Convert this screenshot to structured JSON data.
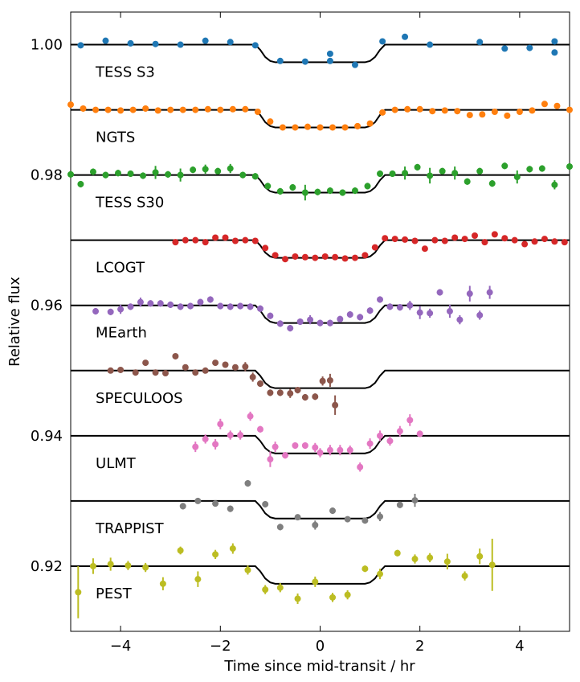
{
  "chart_data": {
    "type": "lightcurve",
    "xlabel": "Time since mid-transit / hr",
    "ylabel": "Relative flux",
    "xlim": [
      -5,
      5
    ],
    "ylim": [
      0.91,
      1.005
    ],
    "xticks": [
      {
        "value": -4,
        "label": "−4"
      },
      {
        "value": -2,
        "label": "−2"
      },
      0,
      2,
      4
    ],
    "yticks": [
      0.92,
      0.94,
      0.96,
      0.98,
      {
        "value": 1,
        "label": "1.00"
      }
    ],
    "model_x": [
      -5,
      -1.3,
      -1.2,
      -1.1,
      -1.0,
      -0.9,
      0.9,
      1.0,
      1.1,
      1.2,
      1.3,
      5
    ],
    "series": [
      {
        "name": "TESS S3",
        "color": "#1f77b4",
        "x": [
          -4.8,
          -4.3,
          -3.8,
          -3.3,
          -2.8,
          -2.3,
          -1.8,
          -1.3,
          -0.8,
          -0.3,
          0.2,
          0.2,
          0.7,
          1.25,
          1.7,
          2.2,
          3.2,
          3.7,
          4.2,
          4.7,
          4.7
        ],
        "values": [
          0.9999,
          1.0006,
          1.0002,
          1.0001,
          1.0,
          1.0006,
          1.0004,
          0.9999,
          0.9975,
          0.9974,
          0.9986,
          0.9975,
          0.9969,
          1.0005,
          1.0012,
          1.0,
          1.0004,
          0.9994,
          0.9995,
          1.0005,
          0.9988
        ],
        "errors": [
          0.0004,
          0.0004,
          0.0004,
          0.0004,
          0.0004,
          0.0004,
          0.0004,
          0.0004,
          0.0004,
          0.0004,
          0.0004,
          0.0004,
          0.0004,
          0.0004,
          0.0004,
          0.0004,
          0.0004,
          0.0004,
          0.0004,
          0.0004,
          0.0004
        ],
        "model": [
          1.0,
          1.0,
          0.9992,
          0.9981,
          0.9975,
          0.9973,
          0.9973,
          0.9975,
          0.9981,
          0.9992,
          1.0,
          1.0
        ]
      },
      {
        "name": "NGTS",
        "color": "#ff7f0e",
        "x": [
          -5,
          -4.75,
          -4.5,
          -4.25,
          -4,
          -3.75,
          -3.5,
          -3.25,
          -3,
          -2.75,
          -2.5,
          -2.25,
          -2,
          -1.75,
          -1.5,
          -1.25,
          -1,
          -0.75,
          -0.5,
          -0.25,
          0,
          0.25,
          0.5,
          0.75,
          1,
          1.25,
          1.5,
          1.75,
          2,
          2.25,
          2.5,
          2.75,
          3,
          3.25,
          3.5,
          3.75,
          4,
          4.25,
          4.5,
          4.75,
          5
        ],
        "values": [
          0.9908,
          0.9902,
          0.99,
          0.99,
          0.9899,
          0.99,
          0.9902,
          0.9899,
          0.99,
          0.99,
          0.99,
          0.9901,
          0.99,
          0.9901,
          0.9901,
          0.9897,
          0.9882,
          0.9873,
          0.9873,
          0.9874,
          0.9873,
          0.9873,
          0.9873,
          0.9875,
          0.9879,
          0.9896,
          0.99,
          0.9901,
          0.9901,
          0.9898,
          0.9899,
          0.9898,
          0.9892,
          0.9893,
          0.9897,
          0.9891,
          0.9897,
          0.9899,
          0.9909,
          0.9906,
          0.99
        ],
        "errors": [
          0.0002,
          0.0002,
          0.0002,
          0.0002,
          0.0002,
          0.0002,
          0.0002,
          0.0002,
          0.0002,
          0.0002,
          0.0002,
          0.0002,
          0.0002,
          0.0002,
          0.0002,
          0.0002,
          0.0002,
          0.0002,
          0.0002,
          0.0002,
          0.0002,
          0.0002,
          0.0002,
          0.0002,
          0.0002,
          0.0002,
          0.0002,
          0.0002,
          0.0002,
          0.0002,
          0.0002,
          0.0002,
          0.0002,
          0.0002,
          0.0002,
          0.0002,
          0.0002,
          0.0002,
          0.0002,
          0.0002,
          0.0002
        ],
        "model": [
          0.99,
          0.99,
          0.9892,
          0.9881,
          0.9875,
          0.9873,
          0.9873,
          0.9875,
          0.9881,
          0.9892,
          0.99,
          0.99
        ]
      },
      {
        "name": "TESS S30",
        "color": "#2ca02c",
        "x": [
          -5,
          -4.8,
          -4.55,
          -4.3,
          -4.05,
          -3.8,
          -3.55,
          -3.3,
          -3.05,
          -2.8,
          -2.55,
          -2.3,
          -2.05,
          -1.8,
          -1.55,
          -1.3,
          -1.05,
          -0.8,
          -0.55,
          -0.3,
          -0.05,
          0.2,
          0.45,
          0.7,
          0.95,
          1.2,
          1.45,
          1.7,
          1.95,
          2.2,
          2.45,
          2.7,
          2.95,
          3.2,
          3.45,
          3.7,
          3.95,
          4.2,
          4.45,
          4.7,
          5
        ],
        "values": [
          0.9801,
          0.9786,
          0.9805,
          0.98,
          0.9803,
          0.9802,
          0.9799,
          0.9804,
          0.9801,
          0.98,
          0.9808,
          0.9809,
          0.9806,
          0.981,
          0.98,
          0.9798,
          0.9783,
          0.9775,
          0.9781,
          0.9773,
          0.9774,
          0.9776,
          0.9773,
          0.9776,
          0.9783,
          0.9802,
          0.9802,
          0.9803,
          0.9812,
          0.9799,
          0.9806,
          0.9803,
          0.979,
          0.9806,
          0.9787,
          0.9814,
          0.9797,
          0.9809,
          0.981,
          0.9785,
          0.9813
        ],
        "errors": [
          0.0005,
          0.0005,
          0.0005,
          0.0005,
          0.0005,
          0.0005,
          0.0005,
          0.001,
          0.0005,
          0.001,
          0.0005,
          0.0007,
          0.0005,
          0.0007,
          0.0005,
          0.0005,
          0.0005,
          0.0005,
          0.0005,
          0.0012,
          0.0005,
          0.0005,
          0.0005,
          0.0005,
          0.0005,
          0.0005,
          0.0005,
          0.001,
          0.0005,
          0.0012,
          0.0005,
          0.001,
          0.0005,
          0.0005,
          0.0005,
          0.0005,
          0.001,
          0.0005,
          0.0005,
          0.0007,
          0.0005
        ],
        "model": [
          0.98,
          0.98,
          0.9792,
          0.9781,
          0.9775,
          0.9773,
          0.9773,
          0.9775,
          0.9781,
          0.9792,
          0.98,
          0.98
        ]
      },
      {
        "name": "LCOGT",
        "color": "#d62728",
        "x": [
          -2.9,
          -2.7,
          -2.5,
          -2.3,
          -2.1,
          -1.9,
          -1.7,
          -1.5,
          -1.3,
          -1.1,
          -0.9,
          -0.7,
          -0.5,
          -0.3,
          -0.1,
          0.1,
          0.3,
          0.5,
          0.7,
          0.9,
          1.1,
          1.3,
          1.5,
          1.7,
          1.9,
          2.1,
          2.3,
          2.5,
          2.7,
          2.9,
          3.1,
          3.3,
          3.5,
          3.7,
          3.9,
          4.1,
          4.3,
          4.5,
          4.7,
          4.9
        ],
        "values": [
          0.9697,
          0.97,
          0.97,
          0.9697,
          0.9704,
          0.9704,
          0.9699,
          0.97,
          0.9699,
          0.9688,
          0.9677,
          0.9671,
          0.9675,
          0.9674,
          0.9673,
          0.9675,
          0.9674,
          0.9672,
          0.9673,
          0.9677,
          0.9689,
          0.9703,
          0.9702,
          0.9701,
          0.9699,
          0.9687,
          0.97,
          0.9699,
          0.9704,
          0.9702,
          0.9707,
          0.9697,
          0.9709,
          0.9703,
          0.97,
          0.9694,
          0.9698,
          0.9702,
          0.9698,
          0.9697
        ],
        "errors": [
          0.0003,
          0.0003,
          0.0003,
          0.0003,
          0.0003,
          0.0003,
          0.0003,
          0.0003,
          0.0003,
          0.0003,
          0.0003,
          0.0003,
          0.0003,
          0.0003,
          0.0003,
          0.0003,
          0.0003,
          0.0003,
          0.0003,
          0.0003,
          0.0003,
          0.0003,
          0.0003,
          0.0003,
          0.0003,
          0.0003,
          0.0003,
          0.0003,
          0.0003,
          0.0003,
          0.0003,
          0.0003,
          0.0003,
          0.0003,
          0.0003,
          0.0003,
          0.0003,
          0.0003,
          0.0003,
          0.0003
        ],
        "model": [
          0.97,
          0.97,
          0.9692,
          0.9681,
          0.9675,
          0.9673,
          0.9673,
          0.9675,
          0.9681,
          0.9692,
          0.97,
          0.97
        ]
      },
      {
        "name": "MEarth",
        "color": "#9467bd",
        "x": [
          -4.5,
          -4.2,
          -4.0,
          -3.8,
          -3.6,
          -3.4,
          -3.2,
          -3.0,
          -2.8,
          -2.6,
          -2.4,
          -2.2,
          -2.0,
          -1.8,
          -1.6,
          -1.4,
          -1.2,
          -1.0,
          -0.8,
          -0.6,
          -0.4,
          -0.2,
          0.0,
          0.2,
          0.4,
          0.6,
          0.8,
          1.0,
          1.2,
          1.4,
          1.6,
          1.8,
          2.0,
          2.2,
          2.4,
          2.6,
          2.8,
          3.0,
          3.2,
          3.4
        ],
        "values": [
          0.9591,
          0.959,
          0.9594,
          0.9598,
          0.9605,
          0.9603,
          0.9603,
          0.9601,
          0.9598,
          0.9599,
          0.9605,
          0.9609,
          0.9599,
          0.9598,
          0.9599,
          0.9598,
          0.9595,
          0.9584,
          0.9572,
          0.9565,
          0.9575,
          0.9578,
          0.9573,
          0.9573,
          0.9579,
          0.9586,
          0.9582,
          0.9592,
          0.9609,
          0.9598,
          0.9597,
          0.96,
          0.9589,
          0.9588,
          0.962,
          0.9591,
          0.9578,
          0.9618,
          0.9585,
          0.962
        ],
        "errors": [
          0.0005,
          0.0005,
          0.0007,
          0.0005,
          0.0007,
          0.0005,
          0.0005,
          0.0005,
          0.0005,
          0.0005,
          0.0005,
          0.0005,
          0.0005,
          0.0005,
          0.0005,
          0.0005,
          0.0005,
          0.0005,
          0.0005,
          0.0005,
          0.0005,
          0.0007,
          0.0005,
          0.0005,
          0.0005,
          0.0005,
          0.0005,
          0.0005,
          0.0005,
          0.0005,
          0.0005,
          0.0007,
          0.001,
          0.0007,
          0.0005,
          0.001,
          0.0007,
          0.0012,
          0.0007,
          0.001
        ],
        "model": [
          0.96,
          0.96,
          0.9592,
          0.9581,
          0.9575,
          0.9573,
          0.9573,
          0.9575,
          0.9581,
          0.9592,
          0.96,
          0.96
        ]
      },
      {
        "name": "SPECULOOS",
        "color": "#8c564b",
        "x": [
          -4.2,
          -4.0,
          -3.7,
          -3.5,
          -3.3,
          -3.1,
          -2.9,
          -2.7,
          -2.5,
          -2.3,
          -2.1,
          -1.9,
          -1.7,
          -1.5,
          -1.35,
          -1.2,
          -1.0,
          -0.8,
          -0.6,
          -0.45,
          -0.3,
          -0.1,
          0.05,
          0.2,
          0.3
        ],
        "values": [
          0.95,
          0.9501,
          0.9497,
          0.9512,
          0.9497,
          0.9496,
          0.9522,
          0.9505,
          0.9497,
          0.95,
          0.9512,
          0.9509,
          0.9505,
          0.9506,
          0.949,
          0.948,
          0.9466,
          0.9466,
          0.9465,
          0.947,
          0.9459,
          0.946,
          0.9484,
          0.9485,
          0.9447
        ],
        "errors": [
          0.0004,
          0.0004,
          0.0004,
          0.0004,
          0.0004,
          0.0004,
          0.0004,
          0.0004,
          0.0004,
          0.0004,
          0.0004,
          0.0004,
          0.0004,
          0.0007,
          0.0007,
          0.0005,
          0.0005,
          0.0005,
          0.0007,
          0.0005,
          0.0005,
          0.0005,
          0.0007,
          0.001,
          0.0015
        ],
        "model": [
          0.95,
          0.95,
          0.9492,
          0.9481,
          0.9475,
          0.9473,
          0.9473,
          0.9475,
          0.9481,
          0.9492,
          0.95,
          0.95
        ]
      },
      {
        "name": "ULMT",
        "color": "#e377c2",
        "x": [
          -2.5,
          -2.3,
          -2.1,
          -2.0,
          -1.8,
          -1.6,
          -1.4,
          -1.2,
          -1.0,
          -0.9,
          -0.7,
          -0.5,
          -0.3,
          -0.1,
          0.0,
          0.2,
          0.4,
          0.6,
          0.8,
          1.0,
          1.2,
          1.4,
          1.6,
          1.8,
          2.0
        ],
        "values": [
          0.9383,
          0.9395,
          0.9387,
          0.9418,
          0.9401,
          0.9401,
          0.943,
          0.941,
          0.9364,
          0.9383,
          0.937,
          0.9385,
          0.9385,
          0.9382,
          0.9374,
          0.9378,
          0.9378,
          0.9378,
          0.9352,
          0.9388,
          0.94,
          0.9392,
          0.9407,
          0.9424,
          0.9403
        ],
        "errors": [
          0.0008,
          0.0007,
          0.0008,
          0.0008,
          0.0007,
          0.0007,
          0.0007,
          0.0005,
          0.0012,
          0.0008,
          0.0005,
          0.0005,
          0.0005,
          0.0007,
          0.0007,
          0.0008,
          0.0008,
          0.0007,
          0.0007,
          0.0008,
          0.0008,
          0.0007,
          0.0008,
          0.0009,
          0.0005
        ],
        "model": [
          0.94,
          0.94,
          0.9392,
          0.9381,
          0.9375,
          0.9373,
          0.9373,
          0.9375,
          0.9381,
          0.9392,
          0.94,
          0.94
        ]
      },
      {
        "name": "TRAPPIST",
        "color": "#7f7f7f",
        "x": [
          -2.75,
          -2.45,
          -2.1,
          -1.8,
          -1.45,
          -1.1,
          -0.8,
          -0.45,
          -0.1,
          0.25,
          0.55,
          0.9,
          1.2,
          1.6,
          1.9
        ],
        "values": [
          0.9292,
          0.93,
          0.9296,
          0.9288,
          0.9327,
          0.9295,
          0.926,
          0.9275,
          0.9263,
          0.9285,
          0.9272,
          0.927,
          0.9276,
          0.9294,
          0.9301
        ],
        "errors": [
          0.0005,
          0.0004,
          0.0004,
          0.0005,
          0.0005,
          0.0005,
          0.0005,
          0.0004,
          0.0007,
          0.0005,
          0.0004,
          0.0004,
          0.0007,
          0.0005,
          0.001
        ],
        "model": [
          0.93,
          0.93,
          0.9292,
          0.9281,
          0.9275,
          0.9273,
          0.9273,
          0.9275,
          0.9281,
          0.9292,
          0.93,
          0.93
        ]
      },
      {
        "name": "PEST",
        "color": "#bcbd22",
        "x": [
          -4.85,
          -4.55,
          -4.2,
          -3.85,
          -3.5,
          -3.15,
          -2.8,
          -2.45,
          -2.1,
          -1.75,
          -1.45,
          -1.1,
          -0.8,
          -0.45,
          -0.1,
          0.25,
          0.55,
          0.9,
          1.2,
          1.55,
          1.9,
          2.2,
          2.55,
          2.9,
          3.2,
          3.45
        ],
        "values": [
          0.916,
          0.92,
          0.9203,
          0.9201,
          0.9198,
          0.9173,
          0.9224,
          0.918,
          0.9218,
          0.9227,
          0.9194,
          0.9164,
          0.9167,
          0.915,
          0.9176,
          0.9152,
          0.9156,
          0.9196,
          0.9188,
          0.922,
          0.9211,
          0.9213,
          0.9207,
          0.9185,
          0.9215,
          0.9202
        ],
        "errors": [
          0.004,
          0.0012,
          0.001,
          0.0007,
          0.0007,
          0.001,
          0.0006,
          0.0012,
          0.0007,
          0.0008,
          0.0007,
          0.0007,
          0.0007,
          0.0008,
          0.0008,
          0.0007,
          0.0007,
          0.0005,
          0.0008,
          0.0005,
          0.0007,
          0.0007,
          0.0012,
          0.0007,
          0.0012,
          0.004
        ],
        "model": [
          0.92,
          0.92,
          0.9192,
          0.9181,
          0.9175,
          0.9173,
          0.9173,
          0.9175,
          0.9181,
          0.9192,
          0.92,
          0.92
        ]
      }
    ]
  }
}
